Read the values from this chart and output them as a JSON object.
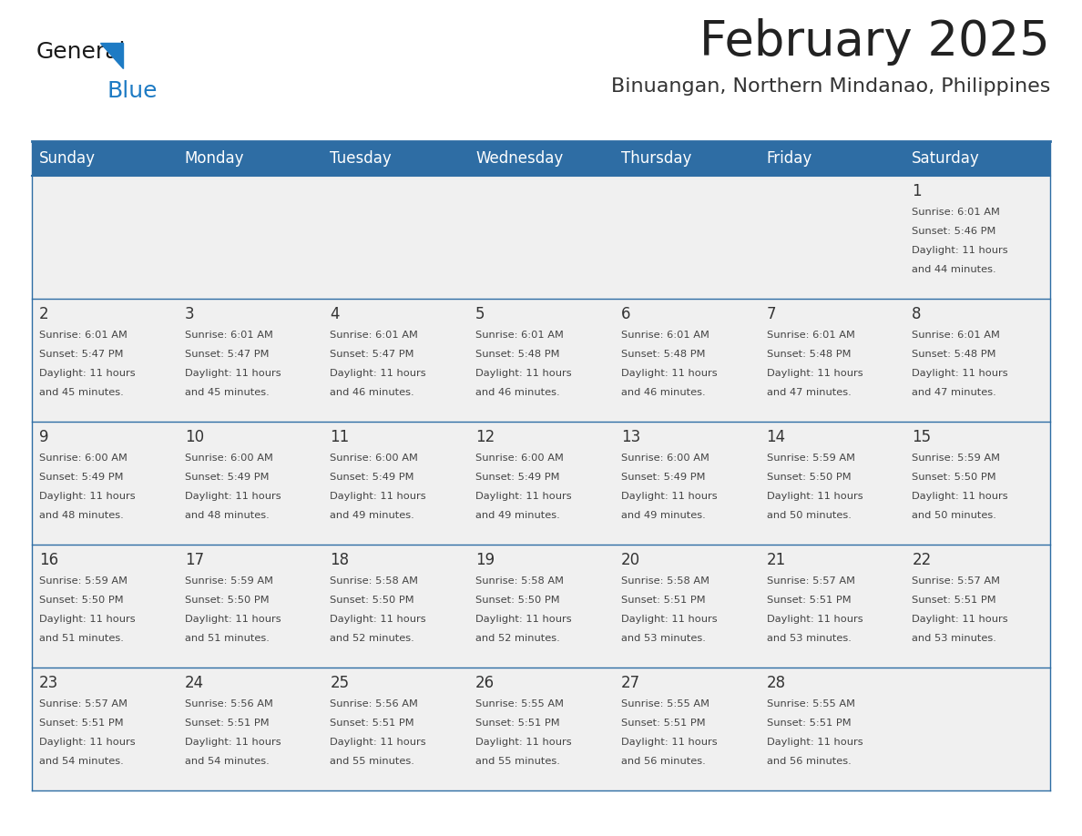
{
  "title": "February 2025",
  "subtitle": "Binuangan, Northern Mindanao, Philippines",
  "days_of_week": [
    "Sunday",
    "Monday",
    "Tuesday",
    "Wednesday",
    "Thursday",
    "Friday",
    "Saturday"
  ],
  "header_bg": "#2E6DA4",
  "header_text": "#FFFFFF",
  "cell_bg_light": "#F0F0F0",
  "border_color": "#2E6DA4",
  "title_color": "#222222",
  "subtitle_color": "#333333",
  "day_num_color": "#333333",
  "cell_text_color": "#444444",
  "logo_general_color": "#1a1a1a",
  "logo_blue_color": "#1E7BC4",
  "calendar_data": [
    {
      "day": 1,
      "col": 6,
      "row": 0,
      "sunrise": "6:01 AM",
      "sunset": "5:46 PM",
      "daylight_hours": 11,
      "daylight_minutes": 44
    },
    {
      "day": 2,
      "col": 0,
      "row": 1,
      "sunrise": "6:01 AM",
      "sunset": "5:47 PM",
      "daylight_hours": 11,
      "daylight_minutes": 45
    },
    {
      "day": 3,
      "col": 1,
      "row": 1,
      "sunrise": "6:01 AM",
      "sunset": "5:47 PM",
      "daylight_hours": 11,
      "daylight_minutes": 45
    },
    {
      "day": 4,
      "col": 2,
      "row": 1,
      "sunrise": "6:01 AM",
      "sunset": "5:47 PM",
      "daylight_hours": 11,
      "daylight_minutes": 46
    },
    {
      "day": 5,
      "col": 3,
      "row": 1,
      "sunrise": "6:01 AM",
      "sunset": "5:48 PM",
      "daylight_hours": 11,
      "daylight_minutes": 46
    },
    {
      "day": 6,
      "col": 4,
      "row": 1,
      "sunrise": "6:01 AM",
      "sunset": "5:48 PM",
      "daylight_hours": 11,
      "daylight_minutes": 46
    },
    {
      "day": 7,
      "col": 5,
      "row": 1,
      "sunrise": "6:01 AM",
      "sunset": "5:48 PM",
      "daylight_hours": 11,
      "daylight_minutes": 47
    },
    {
      "day": 8,
      "col": 6,
      "row": 1,
      "sunrise": "6:01 AM",
      "sunset": "5:48 PM",
      "daylight_hours": 11,
      "daylight_minutes": 47
    },
    {
      "day": 9,
      "col": 0,
      "row": 2,
      "sunrise": "6:00 AM",
      "sunset": "5:49 PM",
      "daylight_hours": 11,
      "daylight_minutes": 48
    },
    {
      "day": 10,
      "col": 1,
      "row": 2,
      "sunrise": "6:00 AM",
      "sunset": "5:49 PM",
      "daylight_hours": 11,
      "daylight_minutes": 48
    },
    {
      "day": 11,
      "col": 2,
      "row": 2,
      "sunrise": "6:00 AM",
      "sunset": "5:49 PM",
      "daylight_hours": 11,
      "daylight_minutes": 49
    },
    {
      "day": 12,
      "col": 3,
      "row": 2,
      "sunrise": "6:00 AM",
      "sunset": "5:49 PM",
      "daylight_hours": 11,
      "daylight_minutes": 49
    },
    {
      "day": 13,
      "col": 4,
      "row": 2,
      "sunrise": "6:00 AM",
      "sunset": "5:49 PM",
      "daylight_hours": 11,
      "daylight_minutes": 49
    },
    {
      "day": 14,
      "col": 5,
      "row": 2,
      "sunrise": "5:59 AM",
      "sunset": "5:50 PM",
      "daylight_hours": 11,
      "daylight_minutes": 50
    },
    {
      "day": 15,
      "col": 6,
      "row": 2,
      "sunrise": "5:59 AM",
      "sunset": "5:50 PM",
      "daylight_hours": 11,
      "daylight_minutes": 50
    },
    {
      "day": 16,
      "col": 0,
      "row": 3,
      "sunrise": "5:59 AM",
      "sunset": "5:50 PM",
      "daylight_hours": 11,
      "daylight_minutes": 51
    },
    {
      "day": 17,
      "col": 1,
      "row": 3,
      "sunrise": "5:59 AM",
      "sunset": "5:50 PM",
      "daylight_hours": 11,
      "daylight_minutes": 51
    },
    {
      "day": 18,
      "col": 2,
      "row": 3,
      "sunrise": "5:58 AM",
      "sunset": "5:50 PM",
      "daylight_hours": 11,
      "daylight_minutes": 52
    },
    {
      "day": 19,
      "col": 3,
      "row": 3,
      "sunrise": "5:58 AM",
      "sunset": "5:50 PM",
      "daylight_hours": 11,
      "daylight_minutes": 52
    },
    {
      "day": 20,
      "col": 4,
      "row": 3,
      "sunrise": "5:58 AM",
      "sunset": "5:51 PM",
      "daylight_hours": 11,
      "daylight_minutes": 53
    },
    {
      "day": 21,
      "col": 5,
      "row": 3,
      "sunrise": "5:57 AM",
      "sunset": "5:51 PM",
      "daylight_hours": 11,
      "daylight_minutes": 53
    },
    {
      "day": 22,
      "col": 6,
      "row": 3,
      "sunrise": "5:57 AM",
      "sunset": "5:51 PM",
      "daylight_hours": 11,
      "daylight_minutes": 53
    },
    {
      "day": 23,
      "col": 0,
      "row": 4,
      "sunrise": "5:57 AM",
      "sunset": "5:51 PM",
      "daylight_hours": 11,
      "daylight_minutes": 54
    },
    {
      "day": 24,
      "col": 1,
      "row": 4,
      "sunrise": "5:56 AM",
      "sunset": "5:51 PM",
      "daylight_hours": 11,
      "daylight_minutes": 54
    },
    {
      "day": 25,
      "col": 2,
      "row": 4,
      "sunrise": "5:56 AM",
      "sunset": "5:51 PM",
      "daylight_hours": 11,
      "daylight_minutes": 55
    },
    {
      "day": 26,
      "col": 3,
      "row": 4,
      "sunrise": "5:55 AM",
      "sunset": "5:51 PM",
      "daylight_hours": 11,
      "daylight_minutes": 55
    },
    {
      "day": 27,
      "col": 4,
      "row": 4,
      "sunrise": "5:55 AM",
      "sunset": "5:51 PM",
      "daylight_hours": 11,
      "daylight_minutes": 56
    },
    {
      "day": 28,
      "col": 5,
      "row": 4,
      "sunrise": "5:55 AM",
      "sunset": "5:51 PM",
      "daylight_hours": 11,
      "daylight_minutes": 56
    }
  ]
}
